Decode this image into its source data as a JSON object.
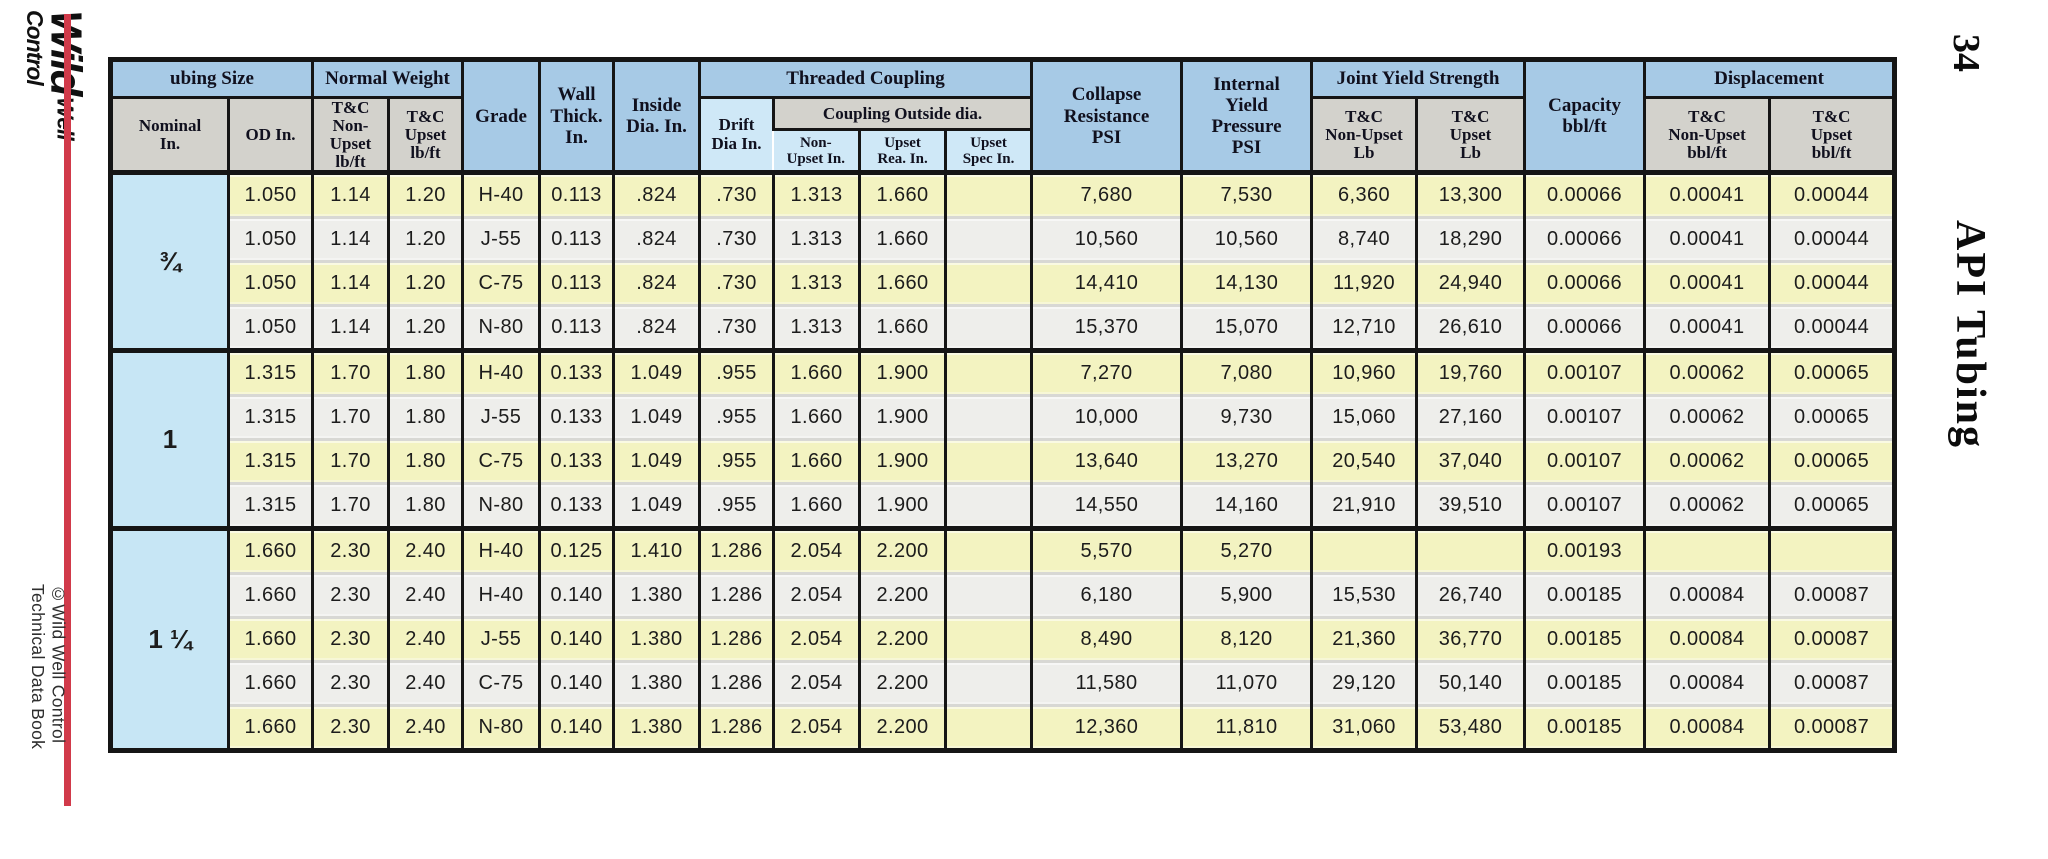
{
  "page": {
    "number": "34",
    "side_title": "API Tubing"
  },
  "branding": {
    "logo_word1": "Wild",
    "logo_word2": "Well Control",
    "footer_line1": "Technical Data Book",
    "footer_line2": "©Wild Well Control"
  },
  "colors": {
    "header_blue": "#a7cae6",
    "header_gray": "#d3d2cc",
    "header_light_blue": "#cfe8f7",
    "row_yellow": "#f3f3c1",
    "row_white": "#eeeeeb",
    "nominal_blue": "#c7e6f5",
    "border_black": "#151515",
    "red_accent": "#d13a4a"
  },
  "table": {
    "headers": {
      "group_tubing_size": "ubing Size",
      "group_normal_weight": "Normal Weight",
      "group_threaded_coupling": "Threaded Coupling",
      "group_coupling_outside": "Coupling Outside dia.",
      "group_joint_yield": "Joint Yield Strength",
      "group_displacement": "Displacement",
      "col_nominal": "Nominal\nIn.",
      "col_od": "OD In.",
      "col_tc_non_upset_lbft": "T&C\nNon-\nUpset\nlb/ft",
      "col_tc_upset_lbft": "T&C\nUpset\nlb/ft",
      "col_grade": "Grade",
      "col_wall_thick": "Wall\nThick.\nIn.",
      "col_inside_dia": "Inside\nDia. In.",
      "col_drift_dia": "Drift\nDia In.",
      "col_coupling_non_upset": "Non-\nUpset In.",
      "col_coupling_upset_rea": "Upset\nRea. In.",
      "col_coupling_upset_spec": "Upset\nSpec In.",
      "col_collapse": "Collapse\nResistance\nPSI",
      "col_internal_yield": "Internal\nYield\nPressure\nPSI",
      "col_jy_non_upset": "T&C\nNon-Upset\nLb",
      "col_jy_upset": "T&C\nUpset\nLb",
      "col_capacity": "Capacity\nbbl/ft",
      "col_disp_non_upset": "T&C\nNon-Upset\nbbl/ft",
      "col_disp_upset": "T&C\nUpset\nbbl/ft"
    },
    "groups": [
      {
        "nominal": "¾",
        "rows": [
          [
            "1.050",
            "1.14",
            "1.20",
            "H-40",
            "0.113",
            ".824",
            ".730",
            "1.313",
            "1.660",
            "",
            "7,680",
            "7,530",
            "6,360",
            "13,300",
            "0.00066",
            "0.00041",
            "0.00044"
          ],
          [
            "1.050",
            "1.14",
            "1.20",
            "J-55",
            "0.113",
            ".824",
            ".730",
            "1.313",
            "1.660",
            "",
            "10,560",
            "10,560",
            "8,740",
            "18,290",
            "0.00066",
            "0.00041",
            "0.00044"
          ],
          [
            "1.050",
            "1.14",
            "1.20",
            "C-75",
            "0.113",
            ".824",
            ".730",
            "1.313",
            "1.660",
            "",
            "14,410",
            "14,130",
            "11,920",
            "24,940",
            "0.00066",
            "0.00041",
            "0.00044"
          ],
          [
            "1.050",
            "1.14",
            "1.20",
            "N-80",
            "0.113",
            ".824",
            ".730",
            "1.313",
            "1.660",
            "",
            "15,370",
            "15,070",
            "12,710",
            "26,610",
            "0.00066",
            "0.00041",
            "0.00044"
          ]
        ]
      },
      {
        "nominal": "1",
        "rows": [
          [
            "1.315",
            "1.70",
            "1.80",
            "H-40",
            "0.133",
            "1.049",
            ".955",
            "1.660",
            "1.900",
            "",
            "7,270",
            "7,080",
            "10,960",
            "19,760",
            "0.00107",
            "0.00062",
            "0.00065"
          ],
          [
            "1.315",
            "1.70",
            "1.80",
            "J-55",
            "0.133",
            "1.049",
            ".955",
            "1.660",
            "1.900",
            "",
            "10,000",
            "9,730",
            "15,060",
            "27,160",
            "0.00107",
            "0.00062",
            "0.00065"
          ],
          [
            "1.315",
            "1.70",
            "1.80",
            "C-75",
            "0.133",
            "1.049",
            ".955",
            "1.660",
            "1.900",
            "",
            "13,640",
            "13,270",
            "20,540",
            "37,040",
            "0.00107",
            "0.00062",
            "0.00065"
          ],
          [
            "1.315",
            "1.70",
            "1.80",
            "N-80",
            "0.133",
            "1.049",
            ".955",
            "1.660",
            "1.900",
            "",
            "14,550",
            "14,160",
            "21,910",
            "39,510",
            "0.00107",
            "0.00062",
            "0.00065"
          ]
        ]
      },
      {
        "nominal": "1 ¼",
        "rows": [
          [
            "1.660",
            "2.30",
            "2.40",
            "H-40",
            "0.125",
            "1.410",
            "1.286",
            "2.054",
            "2.200",
            "",
            "5,570",
            "5,270",
            "",
            "",
            "0.00193",
            "",
            ""
          ],
          [
            "1.660",
            "2.30",
            "2.40",
            "H-40",
            "0.140",
            "1.380",
            "1.286",
            "2.054",
            "2.200",
            "",
            "6,180",
            "5,900",
            "15,530",
            "26,740",
            "0.00185",
            "0.00084",
            "0.00087"
          ],
          [
            "1.660",
            "2.30",
            "2.40",
            "J-55",
            "0.140",
            "1.380",
            "1.286",
            "2.054",
            "2.200",
            "",
            "8,490",
            "8,120",
            "21,360",
            "36,770",
            "0.00185",
            "0.00084",
            "0.00087"
          ],
          [
            "1.660",
            "2.30",
            "2.40",
            "C-75",
            "0.140",
            "1.380",
            "1.286",
            "2.054",
            "2.200",
            "",
            "11,580",
            "11,070",
            "29,120",
            "50,140",
            "0.00185",
            "0.00084",
            "0.00087"
          ],
          [
            "1.660",
            "2.30",
            "2.40",
            "N-80",
            "0.140",
            "1.380",
            "1.286",
            "2.054",
            "2.200",
            "",
            "12,360",
            "11,810",
            "31,060",
            "53,480",
            "0.00185",
            "0.00084",
            "0.00087"
          ]
        ]
      }
    ]
  }
}
